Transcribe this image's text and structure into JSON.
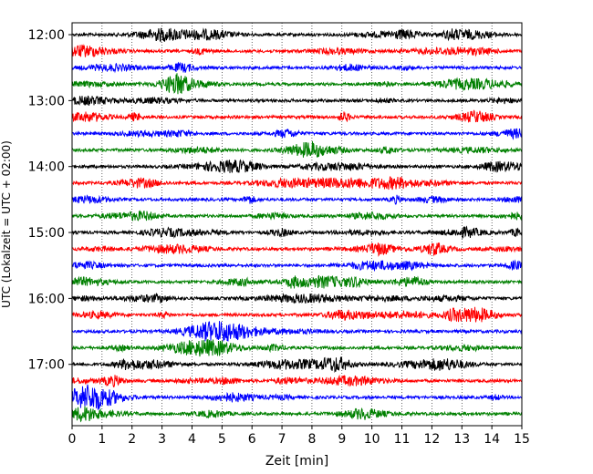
{
  "chart_data": {
    "type": "line",
    "title": "",
    "xlabel": "Zeit  [min]",
    "ylabel": "UTC (Lokalzeit = UTC + 02:00)",
    "xlim": [
      0,
      15
    ],
    "x_ticks": [
      "0",
      "1",
      "2",
      "3",
      "4",
      "5",
      "6",
      "7",
      "8",
      "9",
      "10",
      "11",
      "12",
      "13",
      "14",
      "15"
    ],
    "x_tick_values": [
      0,
      1,
      2,
      3,
      4,
      5,
      6,
      7,
      8,
      9,
      10,
      11,
      12,
      13,
      14,
      15
    ],
    "y_tick_labels": [
      "12:00",
      "13:00",
      "14:00",
      "15:00",
      "16:00",
      "17:00"
    ],
    "y_tick_hours": [
      12,
      13,
      14,
      15,
      16,
      17
    ],
    "ylim_hours": [
      11.82,
      17.93
    ],
    "trace_interval_min": 15,
    "grid": "vertical-dotted",
    "colors": [
      "#000000",
      "#ff0000",
      "#0000ff",
      "#008000"
    ],
    "series": [
      {
        "start": "12:00",
        "color": "#000000"
      },
      {
        "start": "12:15",
        "color": "#ff0000"
      },
      {
        "start": "12:30",
        "color": "#0000ff"
      },
      {
        "start": "12:45",
        "color": "#008000"
      },
      {
        "start": "13:00",
        "color": "#000000"
      },
      {
        "start": "13:15",
        "color": "#ff0000"
      },
      {
        "start": "13:30",
        "color": "#0000ff"
      },
      {
        "start": "13:45",
        "color": "#008000"
      },
      {
        "start": "14:00",
        "color": "#000000"
      },
      {
        "start": "14:15",
        "color": "#ff0000"
      },
      {
        "start": "14:30",
        "color": "#0000ff"
      },
      {
        "start": "14:45",
        "color": "#008000"
      },
      {
        "start": "15:00",
        "color": "#000000"
      },
      {
        "start": "15:15",
        "color": "#ff0000"
      },
      {
        "start": "15:30",
        "color": "#0000ff"
      },
      {
        "start": "15:45",
        "color": "#008000"
      },
      {
        "start": "16:00",
        "color": "#000000"
      },
      {
        "start": "16:15",
        "color": "#ff0000"
      },
      {
        "start": "16:30",
        "color": "#0000ff"
      },
      {
        "start": "16:45",
        "color": "#008000"
      },
      {
        "start": "17:00",
        "color": "#000000"
      },
      {
        "start": "17:15",
        "color": "#ff0000"
      },
      {
        "start": "17:30",
        "color": "#0000ff"
      },
      {
        "start": "17:45",
        "color": "#008000"
      }
    ]
  }
}
